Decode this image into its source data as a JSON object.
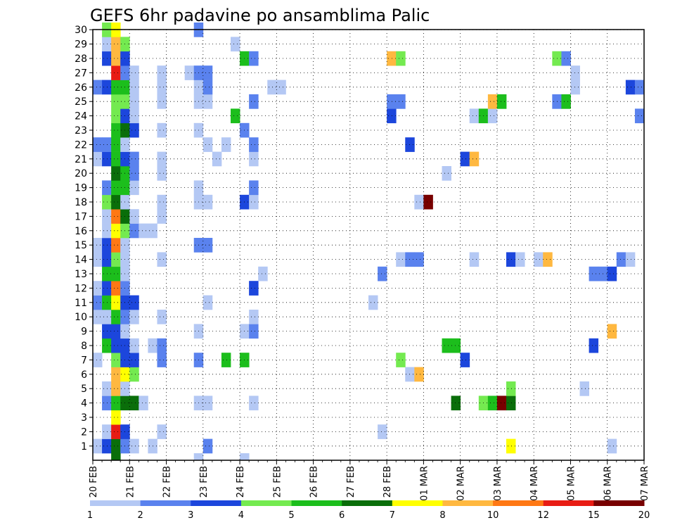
{
  "chart_data": {
    "type": "heatmap",
    "title": "GEFS 6hr padavine po ansamblima Palic",
    "xlabel": "",
    "ylabel": "",
    "x_tick_labels": [
      "20 FEB",
      "21 FEB",
      "22 FEB",
      "23 FEB",
      "24 FEB",
      "25 FEB",
      "26 FEB",
      "27 FEB",
      "28 FEB",
      "01 MAR",
      "02 MAR",
      "03 MAR",
      "04 MAR",
      "05 MAR",
      "06 MAR",
      "07 MAR"
    ],
    "x_step_count": 60,
    "y_members": [
      1,
      2,
      3,
      4,
      5,
      6,
      7,
      8,
      9,
      10,
      11,
      12,
      13,
      14,
      15,
      16,
      17,
      18,
      19,
      20,
      21,
      22,
      23,
      24,
      25,
      26,
      27,
      28,
      29,
      30
    ],
    "grid": "dotted",
    "color_levels": [
      "1",
      "2",
      "3",
      "4",
      "5",
      "6",
      "7",
      "8",
      "10",
      "12",
      "15",
      "20"
    ],
    "colors": [
      "#b4c8f4",
      "#5a82ee",
      "#1c46dc",
      "#74ea50",
      "#1cbe1c",
      "#0a6e0a",
      "#ffff00",
      "#ffb840",
      "#ff7814",
      "#e81c14",
      "#780000"
    ],
    "cells": [
      [
        1,
        0,
        0
      ],
      [
        1,
        1,
        2
      ],
      [
        1,
        2,
        5
      ],
      [
        1,
        3,
        1
      ],
      [
        1,
        4,
        0
      ],
      [
        1,
        6,
        0
      ],
      [
        1,
        12,
        1
      ],
      [
        1,
        45,
        6
      ],
      [
        1,
        56,
        0
      ],
      [
        2,
        1,
        0
      ],
      [
        2,
        2,
        9
      ],
      [
        2,
        3,
        2
      ],
      [
        2,
        7,
        0
      ],
      [
        2,
        31,
        0
      ],
      [
        3,
        2,
        6
      ],
      [
        4,
        1,
        1
      ],
      [
        4,
        2,
        4
      ],
      [
        4,
        3,
        5
      ],
      [
        4,
        4,
        5
      ],
      [
        4,
        5,
        0
      ],
      [
        4,
        11,
        0
      ],
      [
        4,
        12,
        0
      ],
      [
        4,
        17,
        0
      ],
      [
        4,
        39,
        5
      ],
      [
        4,
        42,
        3
      ],
      [
        4,
        43,
        4
      ],
      [
        4,
        44,
        10
      ],
      [
        4,
        45,
        5
      ],
      [
        5,
        1,
        0
      ],
      [
        5,
        2,
        7
      ],
      [
        5,
        3,
        0
      ],
      [
        5,
        45,
        3
      ],
      [
        5,
        53,
        0
      ],
      [
        6,
        2,
        7
      ],
      [
        6,
        3,
        6
      ],
      [
        6,
        4,
        3
      ],
      [
        6,
        34,
        0
      ],
      [
        6,
        35,
        7
      ],
      [
        7,
        0,
        0
      ],
      [
        7,
        2,
        3
      ],
      [
        7,
        3,
        2
      ],
      [
        7,
        4,
        2
      ],
      [
        7,
        7,
        1
      ],
      [
        7,
        11,
        1
      ],
      [
        7,
        14,
        4
      ],
      [
        7,
        16,
        4
      ],
      [
        7,
        33,
        3
      ],
      [
        7,
        40,
        2
      ],
      [
        8,
        1,
        4
      ],
      [
        8,
        2,
        2
      ],
      [
        8,
        3,
        2
      ],
      [
        8,
        4,
        0
      ],
      [
        8,
        6,
        0
      ],
      [
        8,
        7,
        1
      ],
      [
        8,
        38,
        4
      ],
      [
        8,
        39,
        4
      ],
      [
        8,
        54,
        2
      ],
      [
        9,
        1,
        2
      ],
      [
        9,
        2,
        2
      ],
      [
        9,
        3,
        0
      ],
      [
        9,
        11,
        0
      ],
      [
        9,
        16,
        0
      ],
      [
        9,
        17,
        1
      ],
      [
        9,
        56,
        7
      ],
      [
        10,
        0,
        0
      ],
      [
        10,
        1,
        0
      ],
      [
        10,
        2,
        4
      ],
      [
        10,
        3,
        1
      ],
      [
        10,
        4,
        0
      ],
      [
        10,
        7,
        0
      ],
      [
        10,
        17,
        0
      ],
      [
        11,
        0,
        1
      ],
      [
        11,
        1,
        4
      ],
      [
        11,
        2,
        6
      ],
      [
        11,
        3,
        2
      ],
      [
        11,
        4,
        2
      ],
      [
        11,
        12,
        0
      ],
      [
        11,
        30,
        0
      ],
      [
        12,
        0,
        0
      ],
      [
        12,
        1,
        2
      ],
      [
        12,
        2,
        8
      ],
      [
        12,
        3,
        1
      ],
      [
        12,
        17,
        2
      ],
      [
        13,
        1,
        4
      ],
      [
        13,
        2,
        4
      ],
      [
        13,
        3,
        0
      ],
      [
        13,
        18,
        0
      ],
      [
        13,
        31,
        1
      ],
      [
        13,
        54,
        1
      ],
      [
        13,
        55,
        1
      ],
      [
        13,
        56,
        2
      ],
      [
        14,
        0,
        0
      ],
      [
        14,
        1,
        2
      ],
      [
        14,
        2,
        3
      ],
      [
        14,
        3,
        0
      ],
      [
        14,
        7,
        0
      ],
      [
        14,
        33,
        0
      ],
      [
        14,
        34,
        1
      ],
      [
        14,
        35,
        1
      ],
      [
        14,
        41,
        0
      ],
      [
        14,
        45,
        2
      ],
      [
        14,
        46,
        0
      ],
      [
        14,
        48,
        0
      ],
      [
        14,
        49,
        7
      ],
      [
        14,
        57,
        1
      ],
      [
        14,
        58,
        0
      ],
      [
        15,
        0,
        0
      ],
      [
        15,
        1,
        2
      ],
      [
        15,
        2,
        8
      ],
      [
        15,
        3,
        0
      ],
      [
        15,
        11,
        1
      ],
      [
        15,
        12,
        1
      ],
      [
        16,
        1,
        0
      ],
      [
        16,
        2,
        6
      ],
      [
        16,
        3,
        3
      ],
      [
        16,
        4,
        1
      ],
      [
        16,
        5,
        0
      ],
      [
        16,
        6,
        0
      ],
      [
        17,
        1,
        0
      ],
      [
        17,
        2,
        8
      ],
      [
        17,
        3,
        5
      ],
      [
        17,
        4,
        0
      ],
      [
        17,
        7,
        0
      ],
      [
        18,
        1,
        3
      ],
      [
        18,
        2,
        5
      ],
      [
        18,
        3,
        0
      ],
      [
        18,
        7,
        0
      ],
      [
        18,
        11,
        0
      ],
      [
        18,
        12,
        0
      ],
      [
        18,
        16,
        2
      ],
      [
        18,
        17,
        0
      ],
      [
        18,
        35,
        0
      ],
      [
        18,
        36,
        10
      ],
      [
        19,
        1,
        1
      ],
      [
        19,
        2,
        4
      ],
      [
        19,
        3,
        4
      ],
      [
        19,
        4,
        0
      ],
      [
        19,
        11,
        0
      ],
      [
        19,
        17,
        1
      ],
      [
        20,
        2,
        5
      ],
      [
        20,
        3,
        4
      ],
      [
        20,
        4,
        1
      ],
      [
        20,
        7,
        0
      ],
      [
        20,
        38,
        0
      ],
      [
        21,
        0,
        0
      ],
      [
        21,
        1,
        2
      ],
      [
        21,
        2,
        4
      ],
      [
        21,
        3,
        2
      ],
      [
        21,
        4,
        1
      ],
      [
        21,
        7,
        0
      ],
      [
        21,
        13,
        0
      ],
      [
        21,
        17,
        0
      ],
      [
        21,
        40,
        2
      ],
      [
        21,
        41,
        7
      ],
      [
        22,
        0,
        1
      ],
      [
        22,
        1,
        1
      ],
      [
        22,
        2,
        4
      ],
      [
        22,
        3,
        0
      ],
      [
        22,
        12,
        0
      ],
      [
        22,
        14,
        0
      ],
      [
        22,
        17,
        1
      ],
      [
        22,
        34,
        2
      ],
      [
        23,
        2,
        4
      ],
      [
        23,
        3,
        5
      ],
      [
        23,
        4,
        2
      ],
      [
        23,
        7,
        0
      ],
      [
        23,
        11,
        0
      ],
      [
        23,
        16,
        1
      ],
      [
        24,
        2,
        3
      ],
      [
        24,
        3,
        2
      ],
      [
        24,
        4,
        0
      ],
      [
        24,
        15,
        4
      ],
      [
        24,
        32,
        2
      ],
      [
        24,
        41,
        0
      ],
      [
        24,
        42,
        4
      ],
      [
        24,
        43,
        0
      ],
      [
        24,
        59,
        1
      ],
      [
        25,
        2,
        3
      ],
      [
        25,
        3,
        3
      ],
      [
        25,
        4,
        0
      ],
      [
        25,
        7,
        0
      ],
      [
        25,
        11,
        0
      ],
      [
        25,
        12,
        0
      ],
      [
        25,
        17,
        1
      ],
      [
        25,
        32,
        1
      ],
      [
        25,
        33,
        1
      ],
      [
        25,
        43,
        7
      ],
      [
        25,
        44,
        4
      ],
      [
        25,
        50,
        1
      ],
      [
        25,
        51,
        4
      ],
      [
        26,
        0,
        1
      ],
      [
        26,
        1,
        2
      ],
      [
        26,
        2,
        4
      ],
      [
        26,
        3,
        4
      ],
      [
        26,
        4,
        0
      ],
      [
        26,
        7,
        0
      ],
      [
        26,
        11,
        0
      ],
      [
        26,
        12,
        1
      ],
      [
        26,
        19,
        0
      ],
      [
        26,
        20,
        0
      ],
      [
        26,
        52,
        0
      ],
      [
        26,
        58,
        2
      ],
      [
        26,
        59,
        1
      ],
      [
        27,
        2,
        9
      ],
      [
        27,
        3,
        1
      ],
      [
        27,
        4,
        0
      ],
      [
        27,
        7,
        0
      ],
      [
        27,
        10,
        0
      ],
      [
        27,
        11,
        1
      ],
      [
        27,
        12,
        1
      ],
      [
        27,
        52,
        0
      ],
      [
        28,
        1,
        2
      ],
      [
        28,
        2,
        7
      ],
      [
        28,
        3,
        2
      ],
      [
        28,
        16,
        4
      ],
      [
        28,
        17,
        1
      ],
      [
        28,
        32,
        7
      ],
      [
        28,
        33,
        3
      ],
      [
        28,
        50,
        3
      ],
      [
        28,
        51,
        1
      ],
      [
        29,
        1,
        0
      ],
      [
        29,
        2,
        7
      ],
      [
        29,
        3,
        3
      ],
      [
        29,
        15,
        0
      ],
      [
        30,
        1,
        3
      ],
      [
        30,
        2,
        6
      ],
      [
        30,
        11,
        1
      ]
    ],
    "bottom_row_cells": [
      [
        2,
        5
      ],
      [
        11,
        0
      ],
      [
        16,
        0
      ]
    ]
  }
}
